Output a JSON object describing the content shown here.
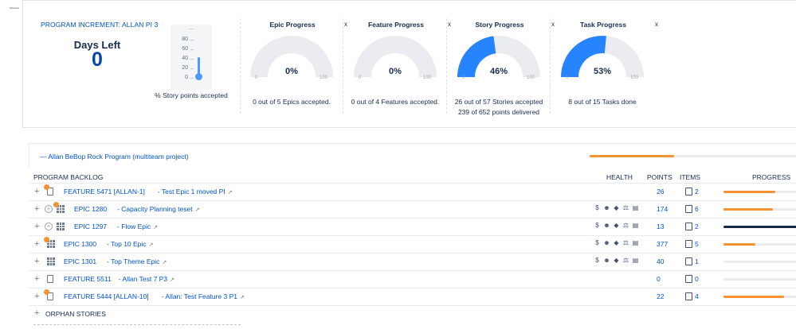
{
  "top": {
    "pi_title": "PROGRAM INCREMENT: ALLAN PI 3",
    "days_left_label": "Days Left",
    "days_left_value": "0",
    "thermometer": {
      "ticks": [
        "80",
        "60",
        "40",
        "20",
        "0"
      ],
      "caption": "% Story points accepted",
      "accent": "#4c9aff"
    },
    "gauges": [
      {
        "title": "Epic Progress",
        "close": "x",
        "percent": 0,
        "percent_label": "0%",
        "min": "0",
        "max": "100",
        "captions": [
          "0 out of 5 Epics accepted."
        ]
      },
      {
        "title": "Feature Progress",
        "close": "x",
        "percent": 0,
        "percent_label": "0%",
        "min": "0",
        "max": "100",
        "captions": [
          "0 out of 4 Features accepted."
        ]
      },
      {
        "title": "Story Progress",
        "close": "x",
        "percent": 46,
        "percent_label": "46%",
        "min": "0",
        "max": "100",
        "captions": [
          "26 out of 57 Stories accepted",
          "239 of 652 points delivered"
        ]
      },
      {
        "title": "Task Progress",
        "close": "x",
        "percent": 53,
        "percent_label": "53%",
        "min": "0",
        "max": "100",
        "captions": [
          "8 out of 15 Tasks done"
        ]
      }
    ],
    "gauge_fill_color": "#2684ff",
    "gauge_bg_color": "#ebecf0"
  },
  "program": {
    "name": "— Allan BeBop Rock Program (multiteam project)",
    "progress": 0.41,
    "bar_color": "#f79232"
  },
  "backlog": {
    "title": "PROGRAM BACKLOG",
    "columns": {
      "health": "HEALTH",
      "points": "POINTS",
      "items": "ITEMS",
      "progress": "PROGRESS"
    },
    "rows": [
      {
        "type": "feature",
        "key": "FEATURE 5471 [ALLAN-1]",
        "title": "- Test Epic 1 moved PI",
        "flag": true,
        "health": false,
        "points": "26",
        "items": "2",
        "progress": 0.66,
        "color": "#f79232",
        "child_toggle": false
      },
      {
        "type": "epic",
        "key": "EPIC 1280",
        "title": "- Capacity Planning teset",
        "flag": true,
        "health": true,
        "points": "174",
        "items": "6",
        "progress": 0.63,
        "color": "#f79232",
        "child_toggle": true
      },
      {
        "type": "epic",
        "key": "EPIC 1297",
        "title": "- Flow Epic",
        "flag": false,
        "health": true,
        "points": "13",
        "items": "2",
        "progress": 1.0,
        "color": "#172b4d",
        "child_toggle": true
      },
      {
        "type": "epic",
        "key": "EPIC 1300",
        "title": "- Top 10 Epic",
        "flag": true,
        "health": true,
        "points": "377",
        "items": "5",
        "progress": 0.41,
        "color": "#f79232",
        "child_toggle": false
      },
      {
        "type": "epic",
        "key": "EPIC 1301",
        "title": "- Top Theme Epic",
        "flag": false,
        "health": true,
        "points": "40",
        "items": "1",
        "progress": 0.0,
        "color": "#f79232",
        "child_toggle": false
      },
      {
        "type": "feature",
        "key": "FEATURE 5511",
        "title": "- Allan Test 7 P3",
        "flag": false,
        "health": false,
        "points": "0",
        "items": "0",
        "progress": 0.0,
        "color": "#f79232",
        "child_toggle": false
      },
      {
        "type": "feature",
        "key": "FEATURE 5444 [ALLAN-10]",
        "title": "- Allan: Test Feature 3 P1",
        "flag": true,
        "health": false,
        "points": "22",
        "items": "4",
        "progress": 0.78,
        "color": "#f79232",
        "child_toggle": false
      }
    ]
  },
  "orphan": {
    "label": "ORPHAN STORIES"
  }
}
